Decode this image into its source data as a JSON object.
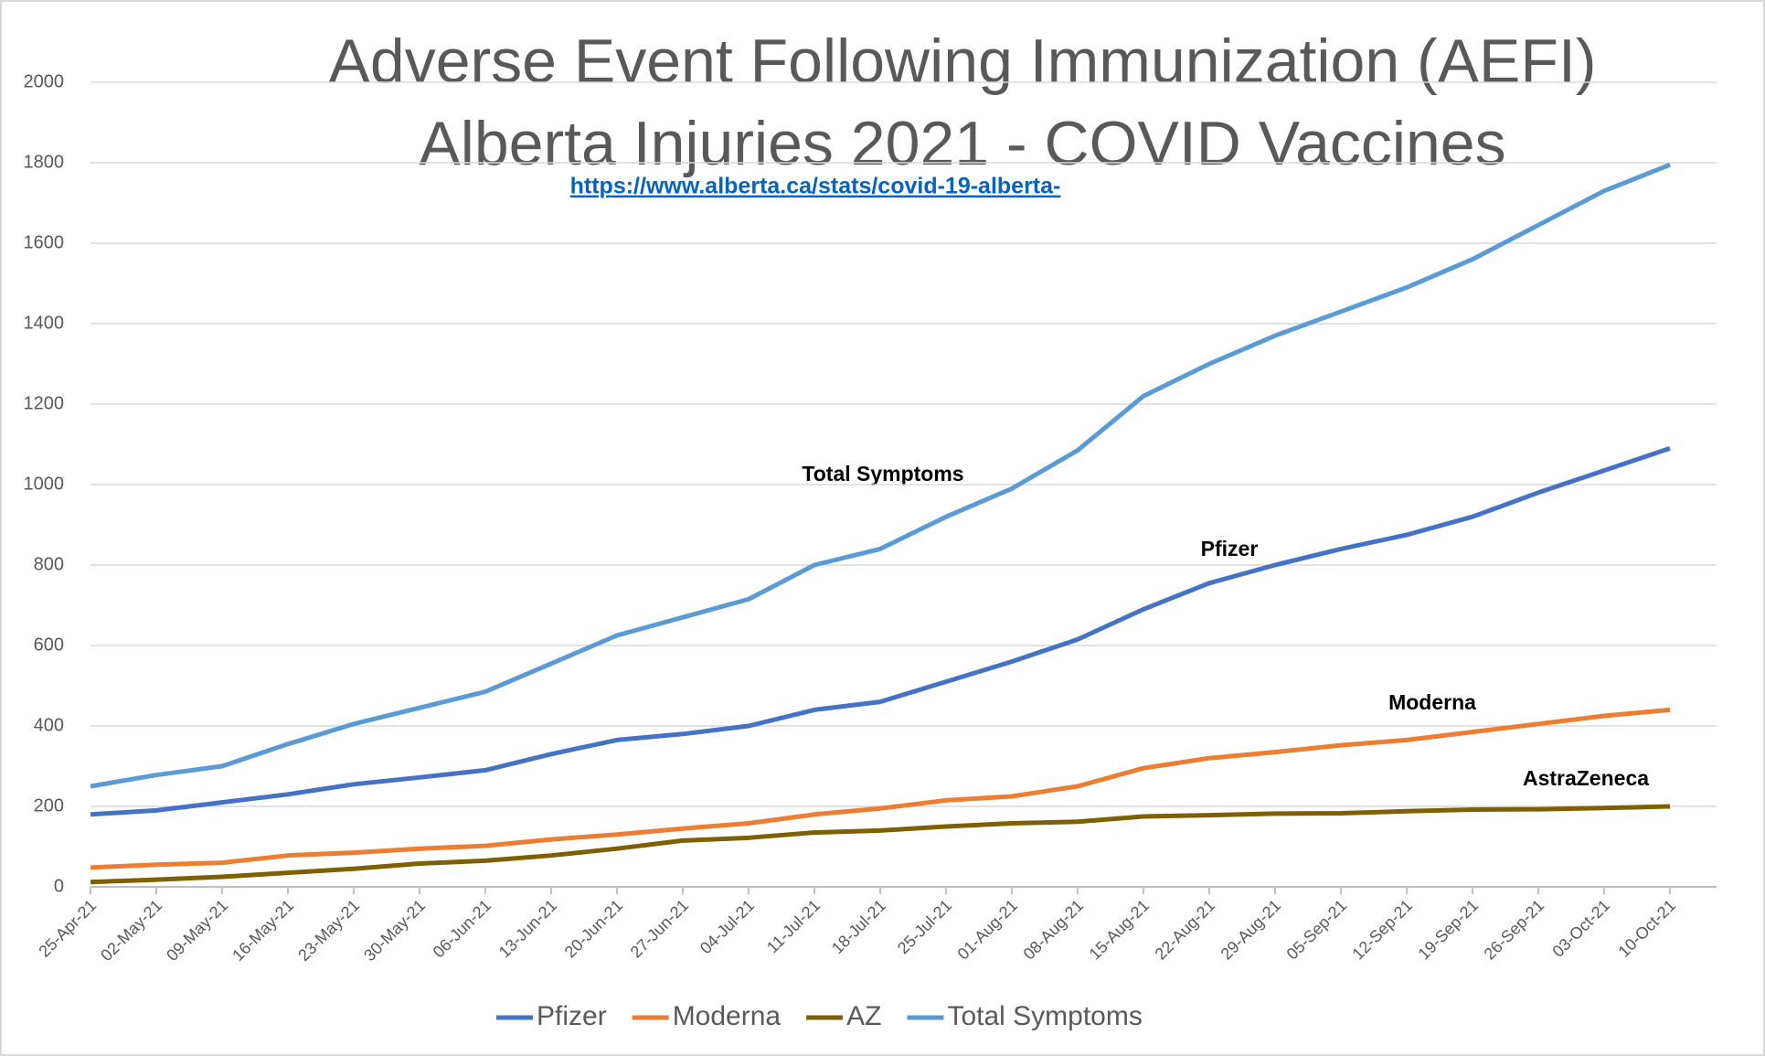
{
  "chart_data": {
    "type": "line",
    "title": "Adverse Event Following Immunization (AEFI)",
    "subtitle": "Alberta Injuries 2021 - COVID Vaccines",
    "source": "https://www.alberta.ca/stats/covid-19-alberta-",
    "categories": [
      "25-Apr-21",
      "02-May-21",
      "09-May-21",
      "16-May-21",
      "23-May-21",
      "30-May-21",
      "06-Jun-21",
      "13-Jun-21",
      "20-Jun-21",
      "27-Jun-21",
      "04-Jul-21",
      "11-Jul-21",
      "18-Jul-21",
      "25-Jul-21",
      "01-Aug-21",
      "08-Aug-21",
      "15-Aug-21",
      "22-Aug-21",
      "29-Aug-21",
      "05-Sep-21",
      "12-Sep-21",
      "19-Sep-21",
      "26-Sep-21",
      "03-Oct-21",
      "10-Oct-21"
    ],
    "series": [
      {
        "name": "Pfizer",
        "color": "#4472c4",
        "values": [
          180,
          190,
          210,
          230,
          255,
          272,
          290,
          330,
          365,
          380,
          400,
          440,
          460,
          510,
          560,
          615,
          690,
          755,
          800,
          840,
          875,
          920,
          980,
          1035,
          1090
        ]
      },
      {
        "name": "Moderna",
        "color": "#ed7d31",
        "values": [
          48,
          55,
          60,
          78,
          85,
          95,
          102,
          118,
          130,
          145,
          158,
          180,
          195,
          215,
          225,
          250,
          295,
          320,
          335,
          352,
          365,
          385,
          405,
          425,
          440
        ]
      },
      {
        "name": "AZ",
        "color": "#7f6000",
        "values": [
          12,
          18,
          25,
          35,
          45,
          58,
          65,
          78,
          95,
          115,
          122,
          135,
          140,
          150,
          158,
          162,
          175,
          178,
          182,
          183,
          188,
          192,
          193,
          196,
          200
        ]
      },
      {
        "name": "Total Symptoms",
        "color": "#5b9bd5",
        "values": [
          250,
          278,
          300,
          355,
          405,
          445,
          485,
          555,
          625,
          670,
          715,
          800,
          840,
          920,
          990,
          1085,
          1220,
          1300,
          1370,
          1430,
          1490,
          1560,
          1645,
          1730,
          1795
        ]
      }
    ],
    "annotations": [
      "Total Symptoms",
      "Pfizer",
      "Moderna",
      "AstraZeneca"
    ],
    "ylim": [
      0,
      2000
    ],
    "yticks": [
      0,
      200,
      400,
      600,
      800,
      1000,
      1200,
      1400,
      1600,
      1800,
      2000
    ],
    "grid": true,
    "legend": "bottom"
  }
}
